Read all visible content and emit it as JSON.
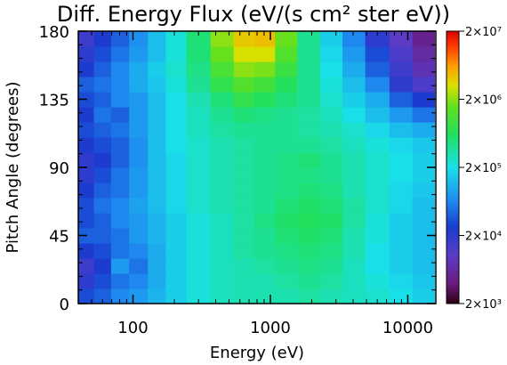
{
  "chart_data": {
    "type": "heatmap",
    "title": "Diff. Energy Flux (eV/(s cm² ster eV))",
    "xlabel": "Energy (eV)",
    "ylabel": "Pitch Angle (degrees)",
    "x_scale": "log",
    "xlim": [
      40,
      16000
    ],
    "ylim": [
      0,
      180
    ],
    "x_ticks": [
      {
        "value": 100,
        "label": "100"
      },
      {
        "value": 1000,
        "label": "1000"
      },
      {
        "value": 10000,
        "label": "10000"
      }
    ],
    "y_ticks": [
      {
        "value": 0,
        "label": "0"
      },
      {
        "value": 45,
        "label": "45"
      },
      {
        "value": 90,
        "label": "90"
      },
      {
        "value": 135,
        "label": "135"
      },
      {
        "value": 180,
        "label": "180"
      }
    ],
    "colorbar": {
      "scale": "log",
      "range": [
        2000,
        20000000
      ],
      "ticks": [
        {
          "value": 20000000,
          "label": "2×10⁷"
        },
        {
          "value": 2000000,
          "label": "2×10⁶"
        },
        {
          "value": 200000,
          "label": "2×10⁵"
        },
        {
          "value": 20000,
          "label": "2×10⁴"
        },
        {
          "value": 2000,
          "label": "2×10³"
        }
      ]
    },
    "energies": [
      45,
      60,
      80,
      110,
      150,
      200,
      300,
      450,
      650,
      900,
      1300,
      1900,
      2800,
      4000,
      6000,
      9000,
      13000
    ],
    "pitch_angles": [
      5,
      15,
      25,
      35,
      45,
      55,
      65,
      75,
      85,
      95,
      105,
      115,
      125,
      135,
      145,
      155,
      165,
      175
    ],
    "flux_log10": [
      [
        4.5,
        4.6,
        4.8,
        4.9,
        5.05,
        5.2,
        5.35,
        5.45,
        5.5,
        5.5,
        5.5,
        5.55,
        5.5,
        5.45,
        5.4,
        5.3,
        5.2
      ],
      [
        4.3,
        4.5,
        4.7,
        4.8,
        5.0,
        5.2,
        5.35,
        5.45,
        5.5,
        5.5,
        5.55,
        5.6,
        5.55,
        5.45,
        5.35,
        5.25,
        5.15
      ],
      [
        4.2,
        4.4,
        4.9,
        4.7,
        5.0,
        5.2,
        5.35,
        5.45,
        5.5,
        5.55,
        5.6,
        5.65,
        5.6,
        5.45,
        5.3,
        5.2,
        5.1
      ],
      [
        4.4,
        4.5,
        4.7,
        4.8,
        5.0,
        5.2,
        5.35,
        5.45,
        5.55,
        5.6,
        5.65,
        5.7,
        5.65,
        5.5,
        5.3,
        5.2,
        5.1
      ],
      [
        4.6,
        4.6,
        4.7,
        4.9,
        5.05,
        5.2,
        5.35,
        5.45,
        5.55,
        5.6,
        5.7,
        5.75,
        5.7,
        5.5,
        5.35,
        5.2,
        5.1
      ],
      [
        4.5,
        4.6,
        4.8,
        4.9,
        5.05,
        5.2,
        5.35,
        5.45,
        5.55,
        5.65,
        5.75,
        5.8,
        5.75,
        5.55,
        5.35,
        5.2,
        5.1
      ],
      [
        4.5,
        4.7,
        4.8,
        4.95,
        5.1,
        5.25,
        5.4,
        5.5,
        5.55,
        5.6,
        5.7,
        5.75,
        5.7,
        5.55,
        5.4,
        5.25,
        5.1
      ],
      [
        4.4,
        4.6,
        4.7,
        4.9,
        5.1,
        5.25,
        5.4,
        5.5,
        5.55,
        5.6,
        5.65,
        5.7,
        5.65,
        5.5,
        5.4,
        5.25,
        5.15
      ],
      [
        4.3,
        4.5,
        4.7,
        4.9,
        5.1,
        5.25,
        5.4,
        5.5,
        5.55,
        5.6,
        5.65,
        5.65,
        5.6,
        5.5,
        5.4,
        5.3,
        5.2
      ],
      [
        4.3,
        4.4,
        4.6,
        4.85,
        5.1,
        5.25,
        5.4,
        5.5,
        5.55,
        5.6,
        5.65,
        5.7,
        5.6,
        5.5,
        5.4,
        5.3,
        5.2
      ],
      [
        4.4,
        4.5,
        4.6,
        4.85,
        5.1,
        5.3,
        5.4,
        5.5,
        5.55,
        5.6,
        5.6,
        5.6,
        5.55,
        5.45,
        5.35,
        5.25,
        5.15
      ],
      [
        4.5,
        4.6,
        4.7,
        4.9,
        5.1,
        5.3,
        5.45,
        5.55,
        5.6,
        5.6,
        5.6,
        5.55,
        5.5,
        5.4,
        5.25,
        5.1,
        5.0
      ],
      [
        4.4,
        4.7,
        4.6,
        4.9,
        5.1,
        5.3,
        5.45,
        5.6,
        5.7,
        5.65,
        5.6,
        5.55,
        5.45,
        5.3,
        5.1,
        4.9,
        4.7
      ],
      [
        4.5,
        4.6,
        4.8,
        4.9,
        5.1,
        5.3,
        5.5,
        5.7,
        5.9,
        5.8,
        5.7,
        5.6,
        5.4,
        5.2,
        5.0,
        4.6,
        4.4
      ],
      [
        4.6,
        4.7,
        4.8,
        5.0,
        5.15,
        5.35,
        5.6,
        5.9,
        6.1,
        6.0,
        5.8,
        5.6,
        5.35,
        5.1,
        4.8,
        4.3,
        4.1
      ],
      [
        4.4,
        4.6,
        4.8,
        5.0,
        5.2,
        5.4,
        5.65,
        6.05,
        6.3,
        6.25,
        5.95,
        5.6,
        5.3,
        5.0,
        4.6,
        4.2,
        3.9
      ],
      [
        4.3,
        4.5,
        4.7,
        4.9,
        5.1,
        5.35,
        5.7,
        6.2,
        6.5,
        6.5,
        6.1,
        5.6,
        5.25,
        4.9,
        4.5,
        4.1,
        3.8
      ],
      [
        4.2,
        4.4,
        4.6,
        4.85,
        5.1,
        5.35,
        5.7,
        6.3,
        6.6,
        6.65,
        6.2,
        5.6,
        5.2,
        4.8,
        4.3,
        4.0,
        3.7
      ]
    ]
  }
}
